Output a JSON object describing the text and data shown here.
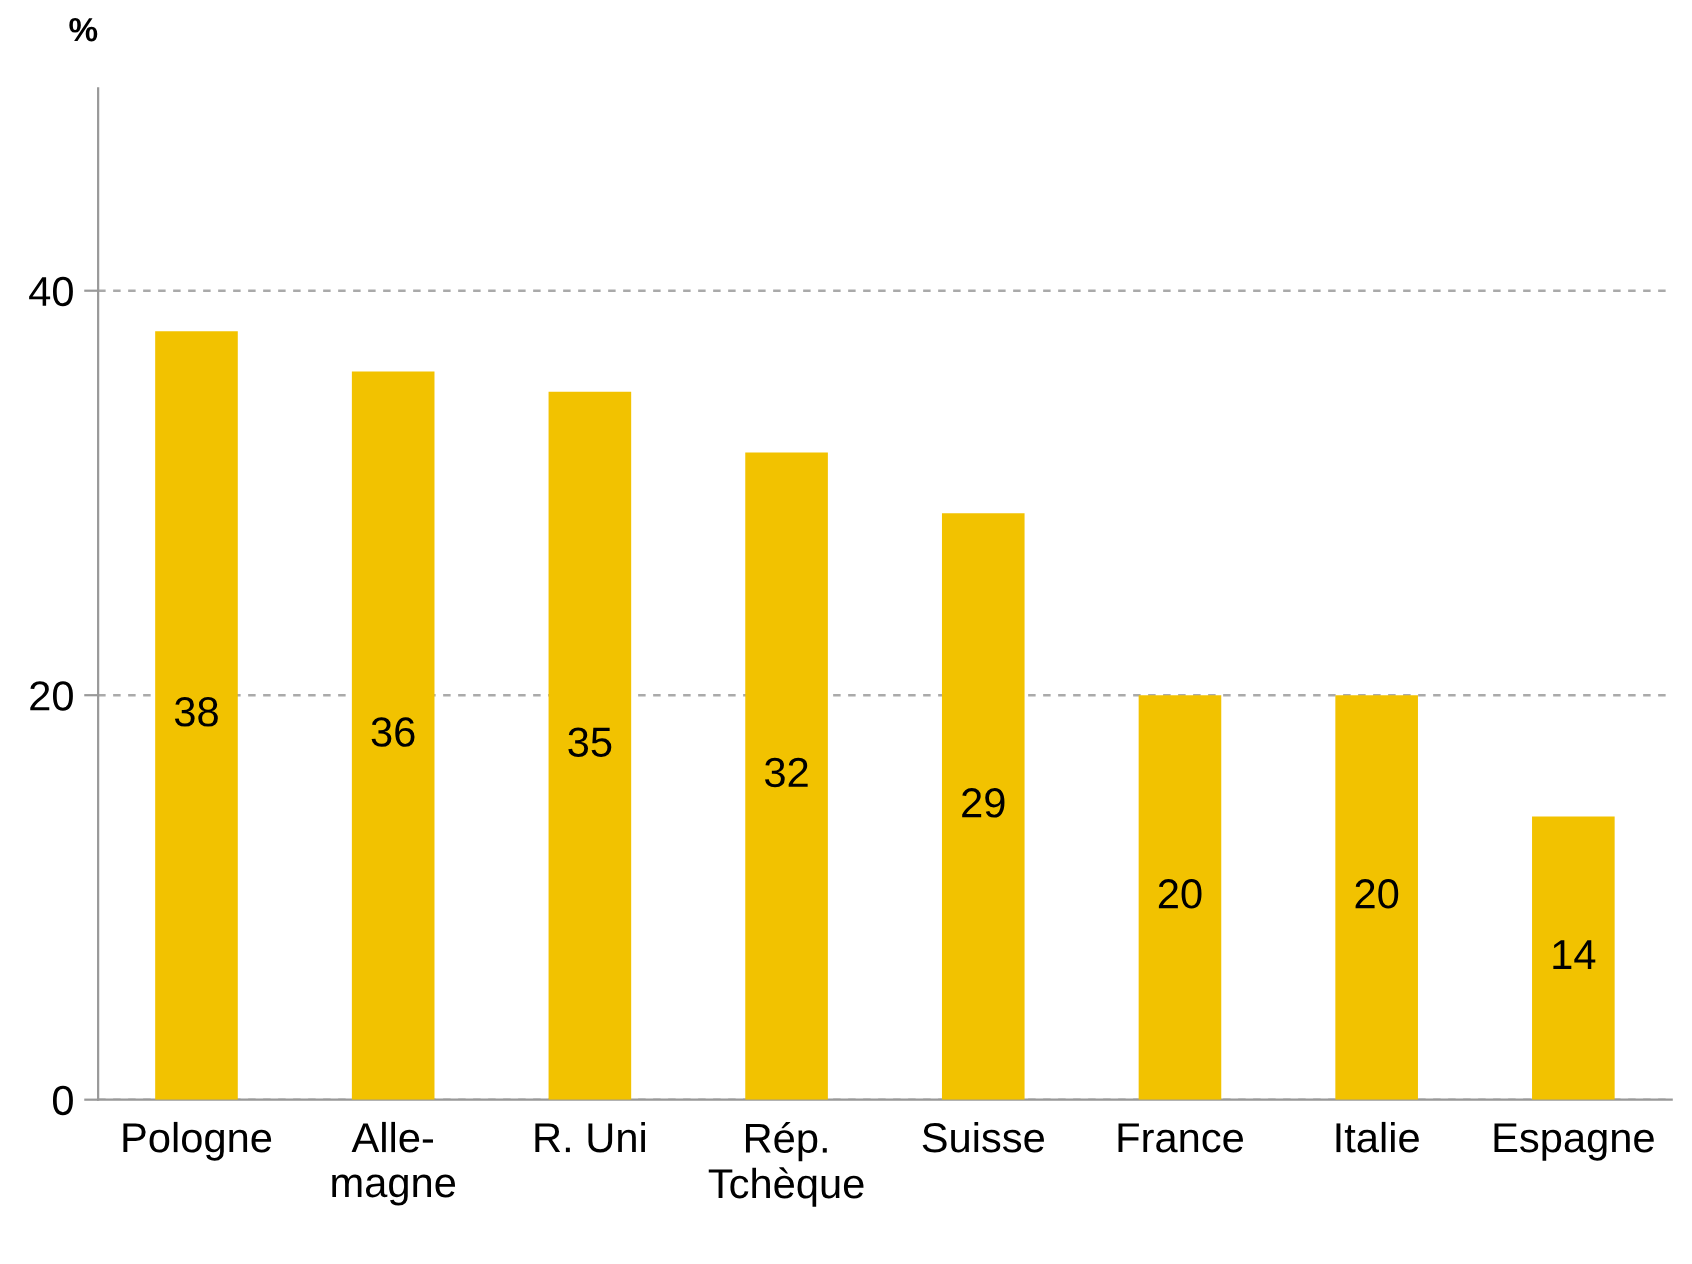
{
  "chart_data": {
    "type": "bar",
    "ylabel": "%",
    "categories": [
      "Pologne",
      "Alle-\nmagne",
      "R. Uni",
      "Rép.\nTchèque",
      "Suisse",
      "France",
      "Italie",
      "Espagne"
    ],
    "values": [
      38,
      36,
      35,
      32,
      29,
      20,
      20,
      14
    ],
    "color": "#f2c200",
    "ylim": [
      0,
      50
    ],
    "yticks": [
      0,
      20,
      40
    ],
    "grid": "y",
    "data_labels": true
  }
}
